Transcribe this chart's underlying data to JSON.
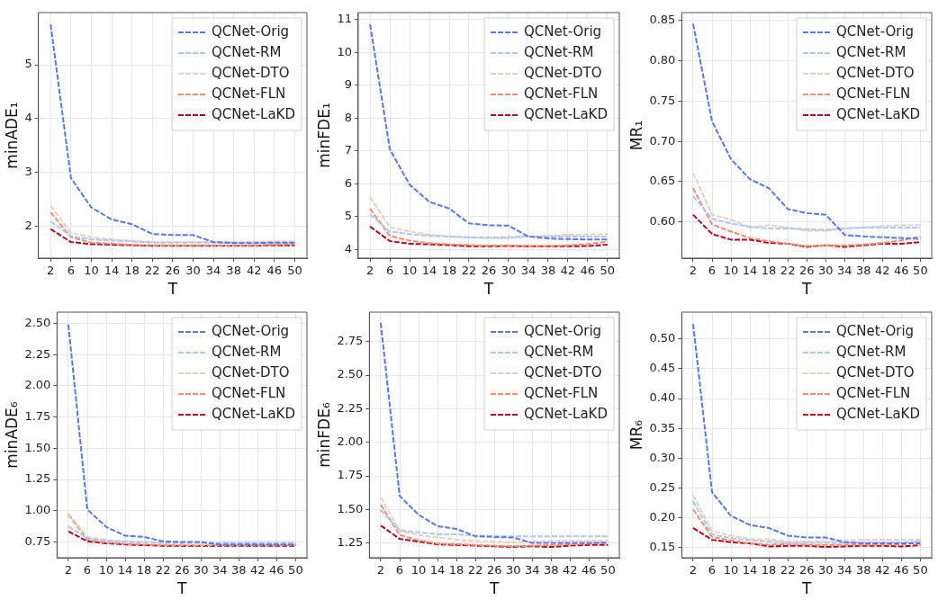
{
  "chart_data": [
    {
      "type": "line",
      "xlabel": "T",
      "ylabel": "minADE₁",
      "x": [
        2,
        6,
        10,
        14,
        18,
        22,
        26,
        30,
        34,
        38,
        42,
        46,
        50
      ],
      "xlim": [
        -0.4,
        52.4
      ],
      "xticks": [
        2,
        6,
        10,
        14,
        18,
        22,
        26,
        30,
        34,
        38,
        42,
        46,
        50
      ],
      "ylim": [
        1.41,
        5.97
      ],
      "yticks": [
        2,
        3,
        4,
        5
      ],
      "grid": true,
      "legend": "top right",
      "line_style": "dashed",
      "series": [
        {
          "name": "QCNet-Orig",
          "color": "#5a78e4",
          "values": [
            5.75,
            2.9,
            2.35,
            2.13,
            2.04,
            1.86,
            1.84,
            1.84,
            1.71,
            1.69,
            1.69,
            1.7,
            1.7
          ]
        },
        {
          "name": "QCNet-RM",
          "color": "#aac7fd",
          "values": [
            2.09,
            1.82,
            1.76,
            1.74,
            1.72,
            1.7,
            1.7,
            1.7,
            1.7,
            1.7,
            1.7,
            1.7,
            1.7
          ]
        },
        {
          "name": "QCNet-DTO",
          "color": "#e8cfc2",
          "values": [
            2.38,
            1.88,
            1.8,
            1.76,
            1.73,
            1.71,
            1.71,
            1.71,
            1.71,
            1.71,
            1.72,
            1.72,
            1.72
          ]
        },
        {
          "name": "QCNet-FLN",
          "color": "#f18f71",
          "values": [
            2.26,
            1.8,
            1.7,
            1.68,
            1.66,
            1.65,
            1.65,
            1.65,
            1.65,
            1.65,
            1.65,
            1.66,
            1.67
          ]
        },
        {
          "name": "QCNet-LaKD",
          "color": "#b40426",
          "values": [
            1.95,
            1.71,
            1.67,
            1.66,
            1.65,
            1.64,
            1.64,
            1.64,
            1.64,
            1.64,
            1.64,
            1.65,
            1.65
          ]
        }
      ]
    },
    {
      "type": "line",
      "xlabel": "T",
      "ylabel": "minFDE₁",
      "x": [
        2,
        6,
        10,
        14,
        18,
        22,
        26,
        30,
        34,
        38,
        42,
        46,
        50
      ],
      "xlim": [
        -0.4,
        52.4
      ],
      "xticks": [
        2,
        6,
        10,
        14,
        18,
        22,
        26,
        30,
        34,
        38,
        42,
        46,
        50
      ],
      "ylim": [
        3.74,
        11.21
      ],
      "yticks": [
        4,
        5,
        6,
        7,
        8,
        9,
        10,
        11
      ],
      "grid": true,
      "legend": "top right",
      "line_style": "dashed",
      "series": [
        {
          "name": "QCNet-Orig",
          "color": "#5a78e4",
          "values": [
            10.85,
            7.05,
            5.98,
            5.45,
            5.25,
            4.8,
            4.74,
            4.73,
            4.4,
            4.34,
            4.32,
            4.31,
            4.31
          ]
        },
        {
          "name": "QCNet-RM",
          "color": "#aac7fd",
          "values": [
            5.07,
            4.55,
            4.47,
            4.42,
            4.4,
            4.37,
            4.37,
            4.38,
            4.4,
            4.4,
            4.4,
            4.4,
            4.4
          ]
        },
        {
          "name": "QCNet-DTO",
          "color": "#e8cfc2",
          "values": [
            5.6,
            4.68,
            4.55,
            4.45,
            4.4,
            4.37,
            4.35,
            4.34,
            4.4,
            4.42,
            4.45,
            4.46,
            4.47
          ]
        },
        {
          "name": "QCNet-FLN",
          "color": "#f18f71",
          "values": [
            5.25,
            4.42,
            4.27,
            4.2,
            4.16,
            4.14,
            4.12,
            4.12,
            4.11,
            4.11,
            4.13,
            4.17,
            4.24
          ]
        },
        {
          "name": "QCNet-LaKD",
          "color": "#b40426",
          "values": [
            4.7,
            4.26,
            4.18,
            4.16,
            4.14,
            4.1,
            4.1,
            4.11,
            4.1,
            4.1,
            4.1,
            4.11,
            4.15
          ]
        }
      ]
    },
    {
      "type": "line",
      "xlabel": "T",
      "ylabel": "MR₁",
      "x": [
        2,
        6,
        10,
        14,
        18,
        22,
        26,
        30,
        34,
        38,
        42,
        46,
        50
      ],
      "xlim": [
        -0.4,
        52.4
      ],
      "xticks": [
        2,
        6,
        10,
        14,
        18,
        22,
        26,
        30,
        34,
        38,
        42,
        46,
        50
      ],
      "ylim": [
        0.555,
        0.86
      ],
      "yticks": [
        {
          "value": 0.6,
          "label": "0.60"
        },
        0.65,
        {
          "value": 0.7,
          "label": "0.70"
        },
        0.75,
        {
          "value": 0.8,
          "label": "0.80"
        },
        0.85
      ],
      "grid": true,
      "legend": "top right",
      "line_style": "dashed",
      "series": [
        {
          "name": "QCNet-Orig",
          "color": "#5a78e4",
          "values": [
            0.846,
            0.725,
            0.678,
            0.653,
            0.642,
            0.616,
            0.611,
            0.609,
            0.584,
            0.582,
            0.581,
            0.58,
            0.579
          ]
        },
        {
          "name": "QCNet-RM",
          "color": "#aac7fd",
          "values": [
            0.632,
            0.604,
            0.598,
            0.594,
            0.592,
            0.592,
            0.591,
            0.59,
            0.592,
            0.593,
            0.593,
            0.593,
            0.593
          ]
        },
        {
          "name": "QCNet-DTO",
          "color": "#e8cfc2",
          "values": [
            0.661,
            0.609,
            0.603,
            0.593,
            0.596,
            0.593,
            0.589,
            0.589,
            0.592,
            0.593,
            0.595,
            0.596,
            0.596
          ]
        },
        {
          "name": "QCNet-FLN",
          "color": "#f18f71",
          "values": [
            0.642,
            0.597,
            0.588,
            0.58,
            0.576,
            0.573,
            0.57,
            0.571,
            0.571,
            0.572,
            0.574,
            0.577,
            0.582
          ]
        },
        {
          "name": "QCNet-LaKD",
          "color": "#b40426",
          "values": [
            0.609,
            0.585,
            0.578,
            0.578,
            0.574,
            0.573,
            0.569,
            0.571,
            0.569,
            0.571,
            0.573,
            0.573,
            0.575
          ]
        }
      ]
    },
    {
      "type": "line",
      "xlabel": "T",
      "ylabel": "minADE₆",
      "x": [
        2,
        6,
        10,
        14,
        18,
        22,
        26,
        30,
        34,
        38,
        42,
        46,
        50
      ],
      "xlim": [
        -0.4,
        52.4
      ],
      "xticks": [
        2,
        6,
        10,
        14,
        18,
        22,
        26,
        30,
        34,
        38,
        42,
        46,
        50
      ],
      "ylim": [
        0.624,
        2.59
      ],
      "yticks": [
        0.75,
        {
          "value": 1,
          "label": "1.00"
        },
        1.25,
        {
          "value": 1.5,
          "label": "1.50"
        },
        1.75,
        {
          "value": 2,
          "label": "2.00"
        },
        2.25,
        {
          "value": 2.5,
          "label": "2.50"
        }
      ],
      "grid": true,
      "legend": "top right",
      "line_style": "dashed",
      "series": [
        {
          "name": "QCNet-Orig",
          "color": "#5a78e4",
          "values": [
            2.49,
            1.01,
            0.87,
            0.8,
            0.79,
            0.755,
            0.75,
            0.75,
            0.73,
            0.73,
            0.73,
            0.73,
            0.73
          ]
        },
        {
          "name": "QCNet-RM",
          "color": "#aac7fd",
          "values": [
            0.875,
            0.78,
            0.76,
            0.755,
            0.75,
            0.745,
            0.745,
            0.745,
            0.745,
            0.745,
            0.745,
            0.745,
            0.745
          ]
        },
        {
          "name": "QCNet-DTO",
          "color": "#e8cfc2",
          "values": [
            0.98,
            0.79,
            0.765,
            0.75,
            0.745,
            0.735,
            0.735,
            0.73,
            0.735,
            0.735,
            0.735,
            0.735,
            0.735
          ]
        },
        {
          "name": "QCNet-FLN",
          "color": "#f18f71",
          "values": [
            0.97,
            0.77,
            0.745,
            0.735,
            0.73,
            0.725,
            0.725,
            0.725,
            0.725,
            0.725,
            0.725,
            0.725,
            0.725
          ]
        },
        {
          "name": "QCNet-LaKD",
          "color": "#b40426",
          "values": [
            0.835,
            0.755,
            0.74,
            0.73,
            0.725,
            0.72,
            0.72,
            0.72,
            0.72,
            0.72,
            0.72,
            0.72,
            0.72
          ]
        }
      ]
    },
    {
      "type": "line",
      "xlabel": "T",
      "ylabel": "minFDE₆",
      "x": [
        2,
        6,
        10,
        14,
        18,
        22,
        26,
        30,
        34,
        38,
        42,
        46,
        50
      ],
      "xlim": [
        -0.4,
        52.4
      ],
      "xticks": [
        2,
        6,
        10,
        14,
        18,
        22,
        26,
        30,
        34,
        38,
        42,
        46,
        50
      ],
      "ylim": [
        1.14,
        2.97
      ],
      "yticks": [
        1.25,
        {
          "value": 1.5,
          "label": "1.50"
        },
        1.75,
        {
          "value": 2,
          "label": "2.00"
        },
        2.25,
        {
          "value": 2.5,
          "label": "2.50"
        },
        2.75
      ],
      "grid": true,
      "legend": "top right",
      "line_style": "dashed",
      "series": [
        {
          "name": "QCNet-Orig",
          "color": "#5a78e4",
          "values": [
            2.89,
            1.6,
            1.46,
            1.375,
            1.355,
            1.3,
            1.295,
            1.29,
            1.25,
            1.25,
            1.25,
            1.25,
            1.25
          ]
        },
        {
          "name": "QCNet-RM",
          "color": "#aac7fd",
          "values": [
            1.495,
            1.345,
            1.33,
            1.315,
            1.315,
            1.305,
            1.3,
            1.3,
            1.3,
            1.3,
            1.3,
            1.3,
            1.3
          ]
        },
        {
          "name": "QCNet-DTO",
          "color": "#e8cfc2",
          "values": [
            1.59,
            1.34,
            1.31,
            1.29,
            1.275,
            1.265,
            1.26,
            1.255,
            1.26,
            1.265,
            1.265,
            1.265,
            1.27
          ]
        },
        {
          "name": "QCNet-FLN",
          "color": "#f18f71",
          "values": [
            1.535,
            1.31,
            1.27,
            1.245,
            1.24,
            1.235,
            1.23,
            1.225,
            1.23,
            1.235,
            1.24,
            1.245,
            1.255
          ]
        },
        {
          "name": "QCNet-LaKD",
          "color": "#b40426",
          "values": [
            1.38,
            1.28,
            1.26,
            1.24,
            1.235,
            1.23,
            1.225,
            1.22,
            1.225,
            1.22,
            1.23,
            1.235,
            1.235
          ]
        }
      ]
    },
    {
      "type": "line",
      "xlabel": "T",
      "ylabel": "MR₆",
      "x": [
        2,
        6,
        10,
        14,
        18,
        22,
        26,
        30,
        34,
        38,
        42,
        46,
        50
      ],
      "xlim": [
        -0.4,
        52.4
      ],
      "xticks": [
        2,
        6,
        10,
        14,
        18,
        22,
        26,
        30,
        34,
        38,
        42,
        46,
        50
      ],
      "ylim": [
        0.133,
        0.545
      ],
      "yticks": [
        0.15,
        {
          "value": 0.2,
          "label": "0.20"
        },
        0.25,
        {
          "value": 0.3,
          "label": "0.30"
        },
        0.35,
        {
          "value": 0.4,
          "label": "0.40"
        },
        0.45,
        {
          "value": 0.5,
          "label": "0.50"
        }
      ],
      "grid": true,
      "legend": "top right",
      "line_style": "dashed",
      "series": [
        {
          "name": "QCNet-Orig",
          "color": "#5a78e4",
          "values": [
            0.525,
            0.243,
            0.203,
            0.188,
            0.183,
            0.17,
            0.167,
            0.167,
            0.159,
            0.157,
            0.157,
            0.157,
            0.157
          ]
        },
        {
          "name": "QCNet-RM",
          "color": "#aac7fd",
          "values": [
            0.228,
            0.172,
            0.166,
            0.162,
            0.16,
            0.158,
            0.158,
            0.158,
            0.158,
            0.159,
            0.159,
            0.159,
            0.16
          ]
        },
        {
          "name": "QCNet-DTO",
          "color": "#e8cfc2",
          "values": [
            0.238,
            0.178,
            0.17,
            0.164,
            0.164,
            0.16,
            0.16,
            0.16,
            0.162,
            0.163,
            0.163,
            0.163,
            0.163
          ]
        },
        {
          "name": "QCNet-FLN",
          "color": "#f18f71",
          "values": [
            0.214,
            0.168,
            0.162,
            0.157,
            0.155,
            0.156,
            0.155,
            0.154,
            0.155,
            0.155,
            0.155,
            0.155,
            0.16
          ]
        },
        {
          "name": "QCNet-LaKD",
          "color": "#b40426",
          "values": [
            0.183,
            0.163,
            0.159,
            0.157,
            0.152,
            0.153,
            0.153,
            0.151,
            0.152,
            0.153,
            0.153,
            0.152,
            0.154
          ]
        }
      ]
    }
  ]
}
